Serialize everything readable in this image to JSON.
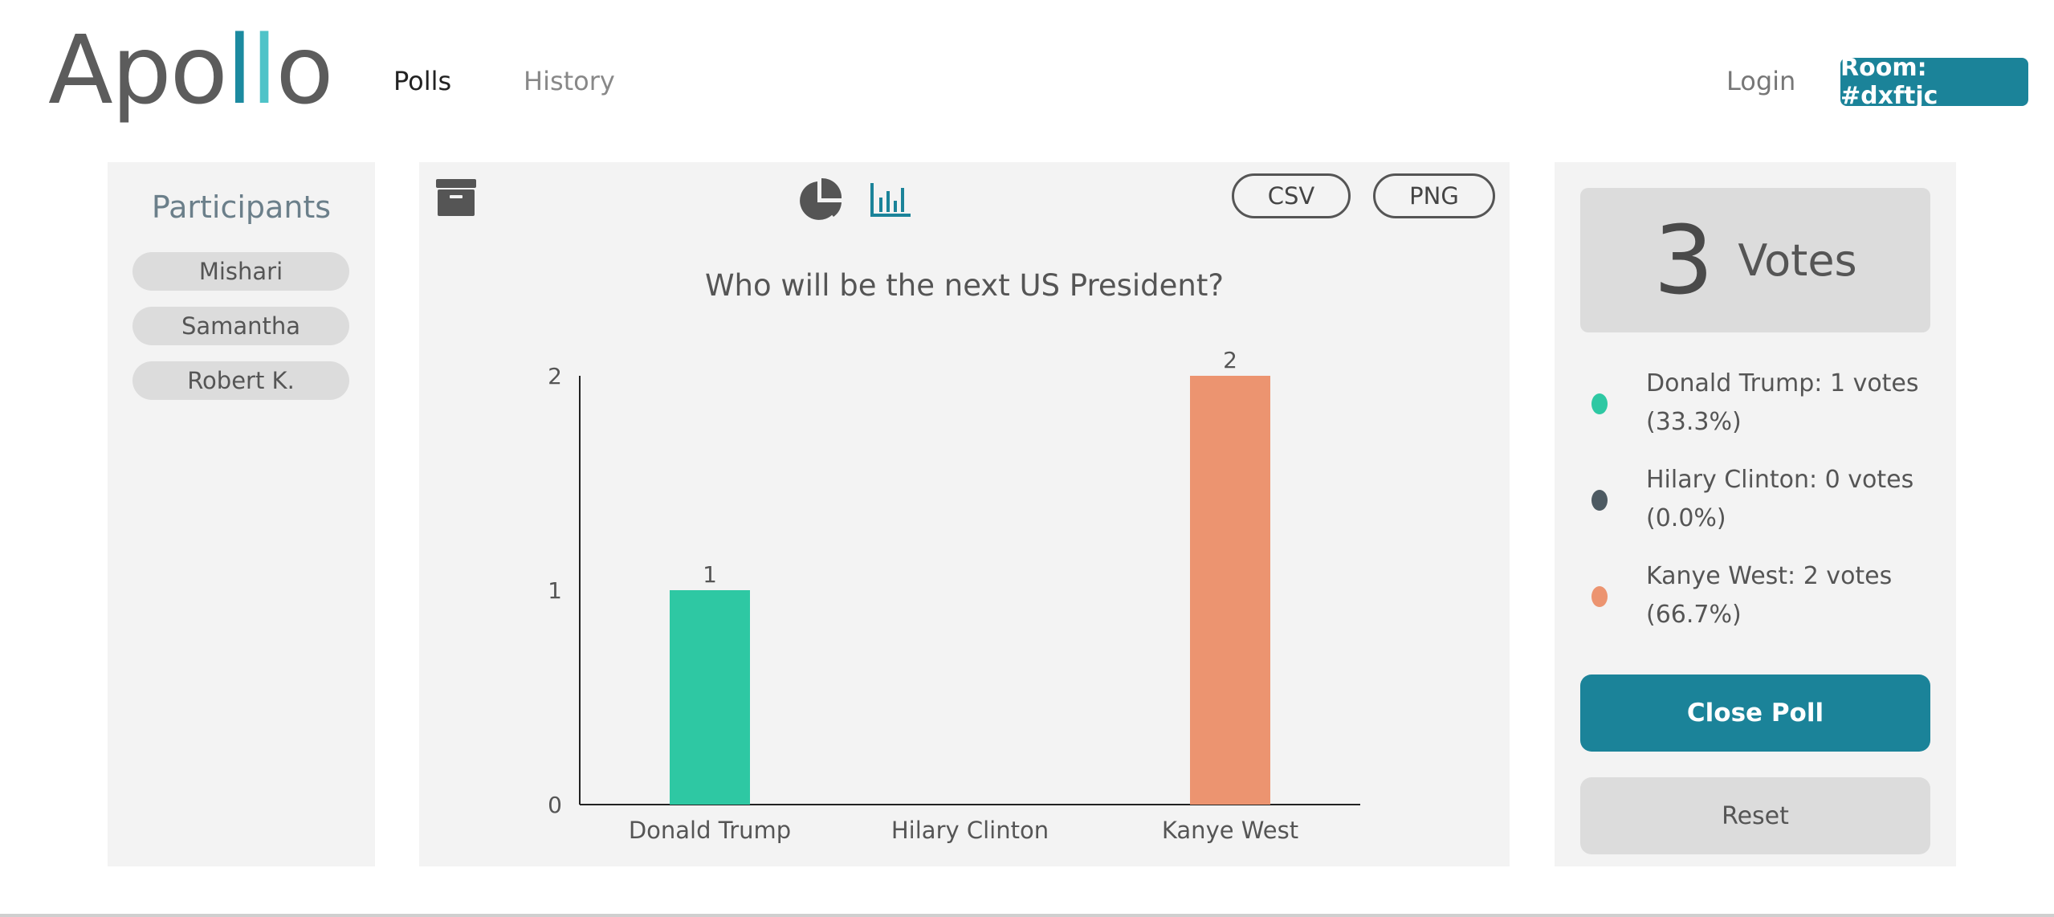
{
  "header": {
    "logo": {
      "part1": "Apo",
      "part2": "l",
      "part3": "l",
      "part4": "o"
    },
    "nav": [
      {
        "label": "Polls",
        "active": true
      },
      {
        "label": "History",
        "active": false
      }
    ],
    "login_label": "Login",
    "room_label": "Room: #dxftjc"
  },
  "participants": {
    "title": "Participants",
    "names": [
      "Mishari",
      "Samantha",
      "Robert K."
    ]
  },
  "toolbar": {
    "archive_icon": "archive-icon",
    "pie_icon": "pie-chart-icon",
    "bar_icon": "bar-chart-icon",
    "csv_label": "CSV",
    "png_label": "PNG"
  },
  "chart_data": {
    "type": "bar",
    "title": "Who will be the next US President?",
    "categories": [
      "Donald Trump",
      "Hilary Clinton",
      "Kanye West"
    ],
    "values": [
      1,
      0,
      2
    ],
    "colors": [
      "#2ec8a3",
      "#4d5a62",
      "#ec9470"
    ],
    "value_labels": [
      "1",
      "",
      "2"
    ],
    "ylim": [
      0,
      2
    ],
    "yticks": [
      "0",
      "1",
      "2"
    ],
    "xlabel": "",
    "ylabel": "",
    "grid": false
  },
  "results": {
    "total": "3",
    "total_label": "Votes",
    "items": [
      {
        "text": "Donald Trump:  1 votes (33.3%)",
        "color": "#2ec8a3"
      },
      {
        "text": "Hilary Clinton:  0 votes (0.0%)",
        "color": "#4d5a62"
      },
      {
        "text": "Kanye West:  2 votes (66.7%)",
        "color": "#ec9470"
      }
    ],
    "close_label": "Close Poll",
    "reset_label": "Reset"
  }
}
